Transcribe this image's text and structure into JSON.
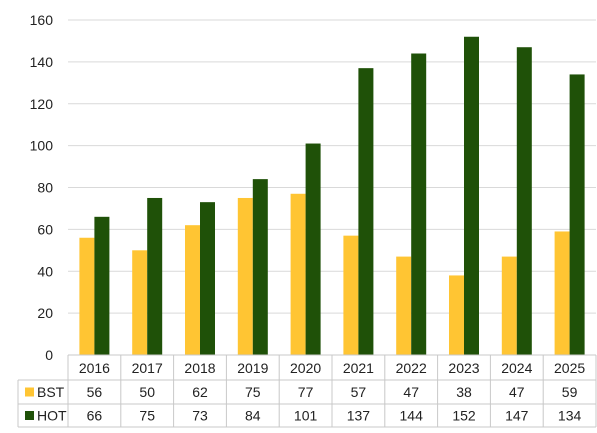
{
  "chart_data": {
    "type": "bar",
    "categories": [
      "2016",
      "2017",
      "2018",
      "2019",
      "2020",
      "2021",
      "2022",
      "2023",
      "2024",
      "2025"
    ],
    "series": [
      {
        "name": "BST",
        "color": "#FFC533",
        "values": [
          56,
          50,
          62,
          75,
          77,
          57,
          47,
          38,
          47,
          59
        ]
      },
      {
        "name": "HOT",
        "color": "#1F5108",
        "values": [
          66,
          75,
          73,
          84,
          101,
          137,
          144,
          152,
          147,
          134
        ]
      }
    ],
    "ylim": [
      0,
      160
    ],
    "yticks": [
      0,
      20,
      40,
      60,
      80,
      100,
      120,
      140,
      160
    ],
    "grid": true,
    "legend": "data-table-left",
    "data_table": true,
    "title": "",
    "xlabel": "",
    "ylabel": ""
  }
}
